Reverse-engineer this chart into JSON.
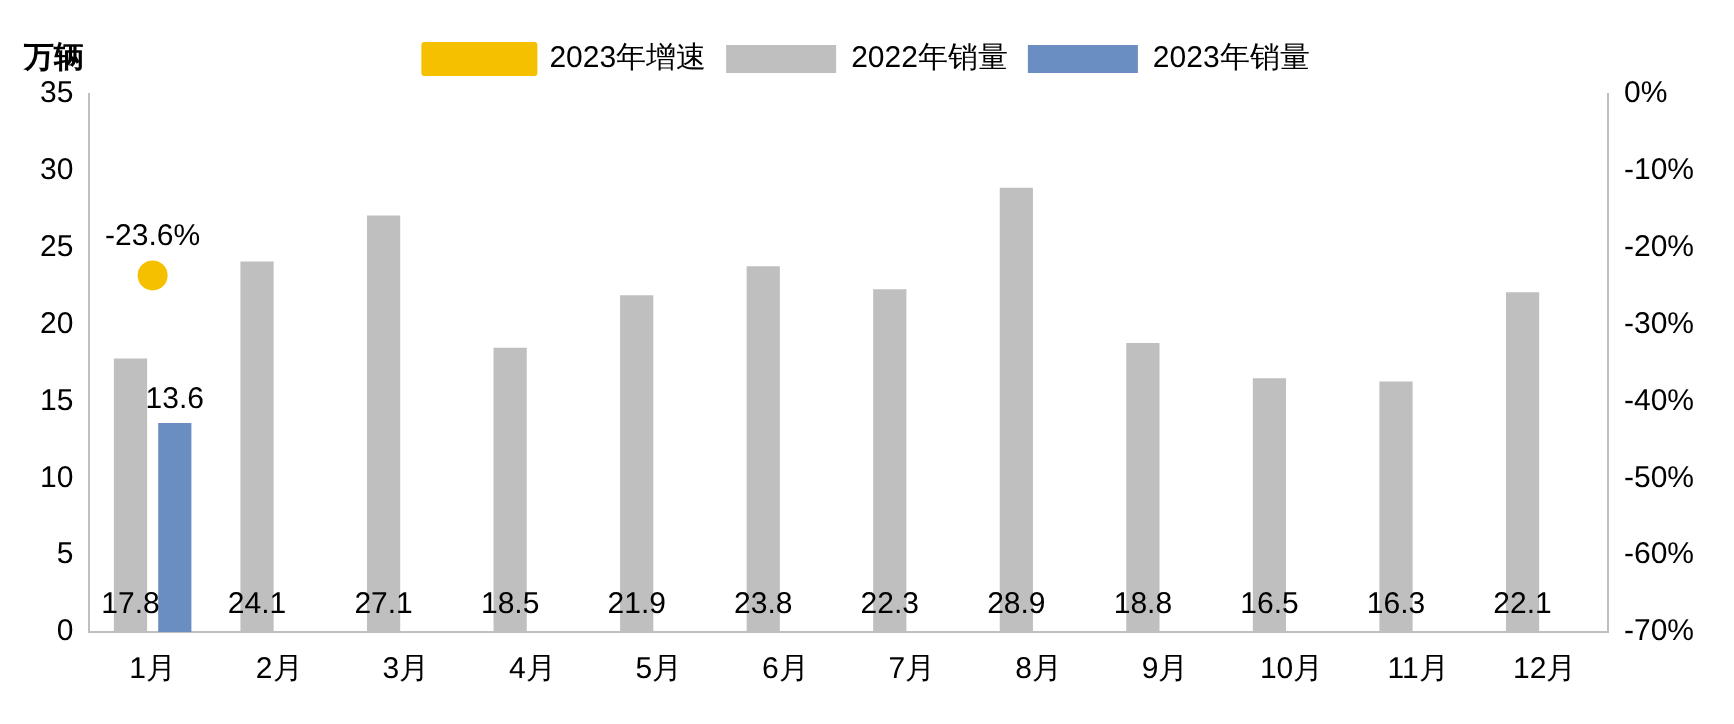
{
  "chart_data": {
    "type": "bar",
    "ylabel": "万辆",
    "categories": [
      "1月",
      "2月",
      "3月",
      "4月",
      "5月",
      "6月",
      "7月",
      "8月",
      "9月",
      "10月",
      "11月",
      "12月"
    ],
    "series": [
      {
        "name": "2022年销量",
        "color": "#bfbfbf",
        "values": [
          17.8,
          24.1,
          27.1,
          18.5,
          21.9,
          23.8,
          22.3,
          28.9,
          18.8,
          16.5,
          16.3,
          22.1
        ]
      },
      {
        "name": "2023年销量",
        "color": "#6a8ec1",
        "values": [
          13.6,
          null,
          null,
          null,
          null,
          null,
          null,
          null,
          null,
          null,
          null,
          null
        ]
      },
      {
        "name": "2023年增速",
        "type": "line",
        "axis": "y2",
        "color": "#f5c000",
        "marker": "circle",
        "values": [
          -23.6,
          null,
          null,
          null,
          null,
          null,
          null,
          null,
          null,
          null,
          null,
          null
        ],
        "value_labels": [
          "-23.6%",
          null,
          null,
          null,
          null,
          null,
          null,
          null,
          null,
          null,
          null,
          null
        ]
      }
    ],
    "ylim": [
      0,
      35
    ],
    "yticks": [
      0,
      5,
      10,
      15,
      20,
      25,
      30,
      35
    ],
    "y2lim": [
      -70,
      0
    ],
    "y2ticks": [
      {
        "value": -70,
        "label": "-70%"
      },
      {
        "value": -60,
        "label": "-60%"
      },
      {
        "value": -50,
        "label": "-50%"
      },
      {
        "value": -40,
        "label": "-40%"
      },
      {
        "value": -30,
        "label": "-30%"
      },
      {
        "value": -20,
        "label": "-20%"
      },
      {
        "value": -10,
        "label": "-10%"
      },
      {
        "value": 0,
        "label": "0%"
      }
    ],
    "data_labels": true,
    "grid": false,
    "legend": "top"
  }
}
